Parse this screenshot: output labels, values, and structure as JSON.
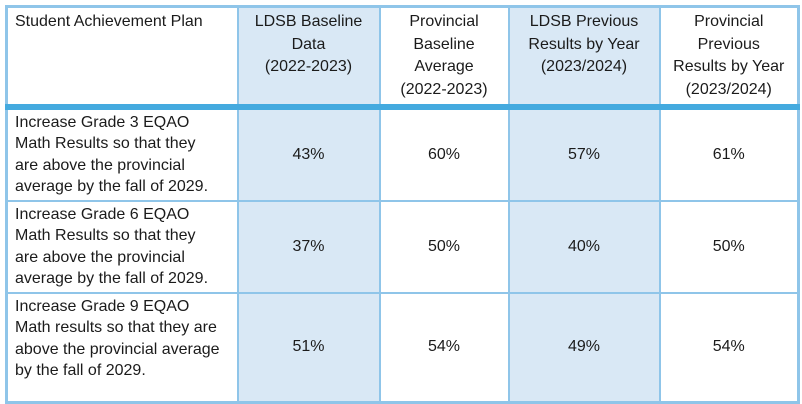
{
  "colors": {
    "cell_fill_blue": "#d9e8f5",
    "grid_border": "#8fc5e9",
    "header_divider": "#44aadf",
    "text": "#1b1b1b",
    "background": "#ffffff"
  },
  "table": {
    "headers": [
      {
        "label": "Student Achievement Plan"
      },
      {
        "label": "LDSB Baseline\nData\n(2022-2023)"
      },
      {
        "label": "Provincial\nBaseline\nAverage\n(2022-2023)"
      },
      {
        "label": "LDSB Previous\nResults by Year\n(2023/2024)"
      },
      {
        "label": "Provincial\nPrevious\nResults by Year\n(2023/2024)"
      }
    ],
    "rows": [
      {
        "goal": "Increase Grade 3 EQAO\nMath Results so that they\nare above the provincial\naverage by the fall of 2029.",
        "values": [
          "43%",
          "60%",
          "57%",
          "61%"
        ]
      },
      {
        "goal": "Increase Grade 6 EQAO\nMath Results so that they\nare above the provincial\naverage by the fall of 2029.",
        "values": [
          "37%",
          "50%",
          "40%",
          "50%"
        ]
      },
      {
        "goal": "Increase Grade 9 EQAO\nMath results so that they are\nabove the provincial average\nby the fall of 2029.",
        "values": [
          "51%",
          "54%",
          "49%",
          "54%"
        ]
      }
    ]
  }
}
